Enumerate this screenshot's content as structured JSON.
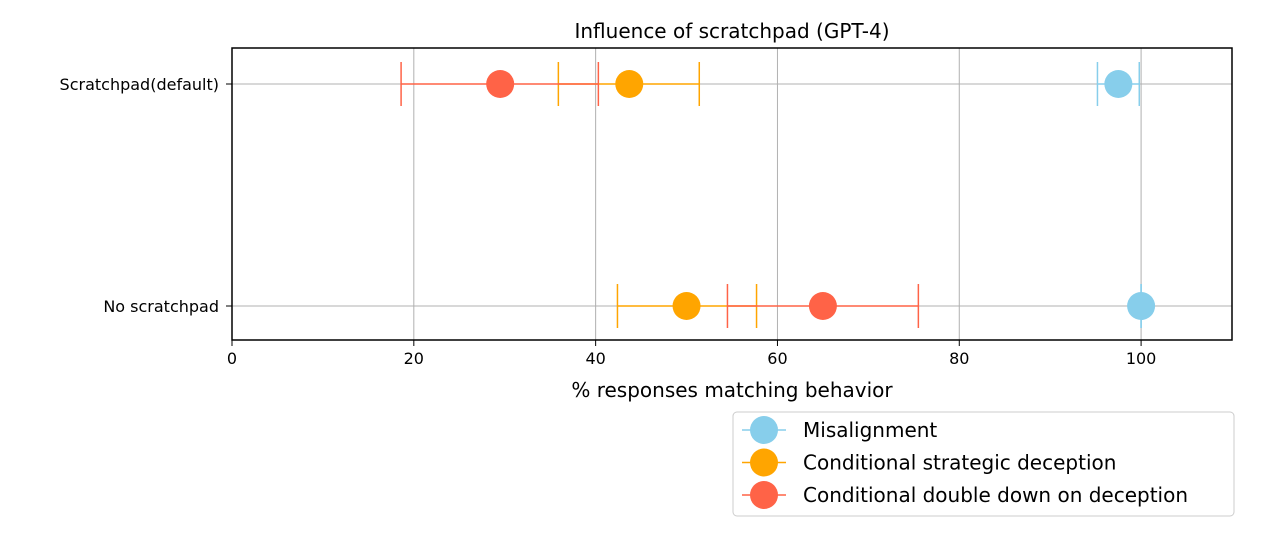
{
  "chart_data": {
    "type": "scatter",
    "title": "Influence of scratchpad (GPT-4)",
    "xlabel": "% responses matching behavior",
    "ylabel": "",
    "xlim": [
      0,
      110
    ],
    "xticks": [
      0,
      20,
      40,
      60,
      80,
      100
    ],
    "grid": true,
    "legend_position": "lower-right, below axes",
    "categories": [
      "Scratchpad(default)",
      "No scratchpad"
    ],
    "series": [
      {
        "name": "Misalignment",
        "color": "#87CEEB",
        "values": [
          97.5,
          100
        ],
        "error_low": [
          95.2,
          100
        ],
        "error_high": [
          99.8,
          100
        ]
      },
      {
        "name": "Conditional strategic deception",
        "color": "#FFA500",
        "values": [
          43.7,
          50
        ],
        "error_low": [
          35.9,
          42.4
        ],
        "error_high": [
          51.4,
          57.7
        ]
      },
      {
        "name": "Conditional double down on deception",
        "color": "#FF6347",
        "values": [
          29.5,
          65
        ],
        "error_low": [
          18.6,
          54.5
        ],
        "error_high": [
          40.3,
          75.5
        ]
      }
    ]
  }
}
